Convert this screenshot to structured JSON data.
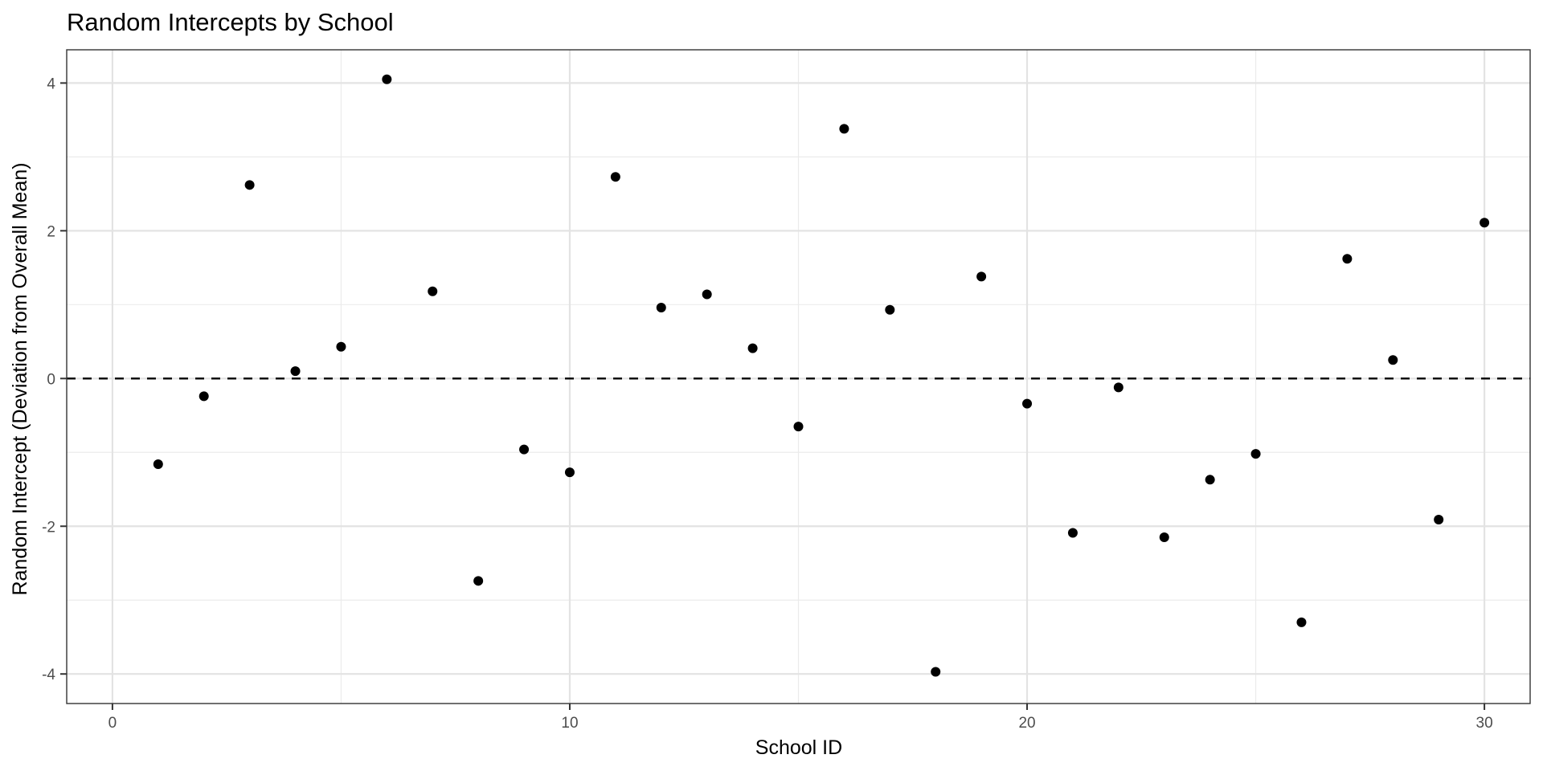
{
  "chart_data": {
    "type": "scatter",
    "title": "Random Intercepts by School",
    "xlabel": "School ID",
    "ylabel": "Random Intercept (Deviation from Overall Mean)",
    "xlim": [
      -1,
      31
    ],
    "ylim": [
      -4.4,
      4.45
    ],
    "x_ticks": [
      0,
      10,
      20,
      30
    ],
    "y_ticks": [
      -4,
      -2,
      0,
      2,
      4
    ],
    "x_tick_labels": [
      "0",
      "10",
      "20",
      "30"
    ],
    "y_tick_labels": [
      "-4",
      "-2",
      "0",
      "2",
      "4"
    ],
    "grid": true,
    "legend": null,
    "reference_line": {
      "y": 0,
      "style": "dashed",
      "color": "#000000"
    },
    "point_color": "#000000",
    "x": [
      1,
      2,
      3,
      4,
      5,
      6,
      7,
      8,
      9,
      10,
      11,
      12,
      13,
      14,
      15,
      16,
      17,
      18,
      19,
      20,
      21,
      22,
      23,
      24,
      25,
      26,
      27,
      28,
      29,
      30
    ],
    "y": [
      -1.16,
      -0.24,
      2.62,
      0.1,
      0.43,
      4.05,
      1.18,
      -2.74,
      -0.96,
      -1.27,
      2.73,
      0.96,
      1.14,
      0.41,
      -0.65,
      3.38,
      0.93,
      -3.97,
      1.38,
      -0.34,
      -2.09,
      -0.12,
      -2.15,
      -1.37,
      -1.02,
      -3.3,
      1.62,
      0.25,
      -1.91,
      2.11
    ]
  }
}
